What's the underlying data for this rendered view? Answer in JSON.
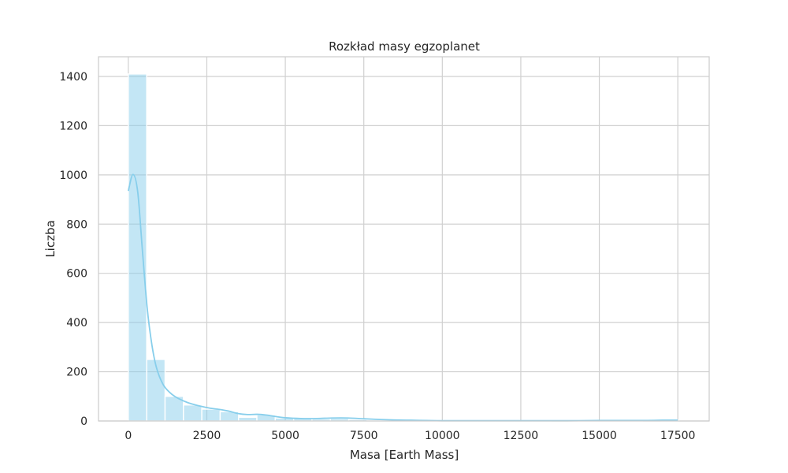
{
  "chart_data": {
    "type": "bar",
    "title": "Rozkład masy egzoplanet",
    "xlabel": "Masa [Earth Mass]",
    "ylabel": "Liczba",
    "xlim": [
      -950,
      18500
    ],
    "ylim": [
      0,
      1480
    ],
    "xticks": [
      0,
      2500,
      5000,
      7500,
      10000,
      12500,
      15000,
      17500
    ],
    "yticks": [
      0,
      200,
      400,
      600,
      800,
      1000,
      1200,
      1400
    ],
    "grid": true,
    "bin_width": 585,
    "bins": [
      {
        "x0": 0,
        "count": 1410
      },
      {
        "x0": 585,
        "count": 250
      },
      {
        "x0": 1170,
        "count": 100
      },
      {
        "x0": 1755,
        "count": 65
      },
      {
        "x0": 2340,
        "count": 48
      },
      {
        "x0": 2925,
        "count": 38
      },
      {
        "x0": 3510,
        "count": 15
      },
      {
        "x0": 4095,
        "count": 25
      },
      {
        "x0": 4680,
        "count": 12
      },
      {
        "x0": 5265,
        "count": 10
      },
      {
        "x0": 5850,
        "count": 8
      },
      {
        "x0": 6435,
        "count": 10
      },
      {
        "x0": 7020,
        "count": 6
      },
      {
        "x0": 7605,
        "count": 4
      },
      {
        "x0": 8190,
        "count": 3
      },
      {
        "x0": 8775,
        "count": 3
      },
      {
        "x0": 9360,
        "count": 2
      },
      {
        "x0": 9945,
        "count": 1
      },
      {
        "x0": 10530,
        "count": 1
      },
      {
        "x0": 11115,
        "count": 1
      },
      {
        "x0": 11700,
        "count": 1
      },
      {
        "x0": 12285,
        "count": 1
      },
      {
        "x0": 12870,
        "count": 1
      },
      {
        "x0": 13455,
        "count": 0
      },
      {
        "x0": 14040,
        "count": 1
      },
      {
        "x0": 14625,
        "count": 1
      },
      {
        "x0": 15210,
        "count": 2
      },
      {
        "x0": 15795,
        "count": 1
      },
      {
        "x0": 16380,
        "count": 0
      },
      {
        "x0": 16965,
        "count": 3
      }
    ],
    "kde": {
      "x": [
        0,
        150,
        300,
        450,
        600,
        750,
        900,
        1100,
        1300,
        1500,
        1750,
        2000,
        2300,
        2600,
        2900,
        3200,
        3500,
        3800,
        4100,
        4400,
        4700,
        5000,
        5500,
        6000,
        6500,
        7000,
        7500,
        8000,
        8500,
        9000,
        9500,
        10000,
        11000,
        12000,
        13000,
        14000,
        15000,
        15500,
        16000,
        16500,
        17000,
        17500
      ],
      "y": [
        935,
        1002,
        930,
        690,
        460,
        310,
        215,
        150,
        118,
        98,
        82,
        70,
        60,
        52,
        47,
        40,
        30,
        26,
        27,
        24,
        18,
        13,
        10,
        10,
        12,
        12,
        9,
        6,
        4,
        3,
        2,
        1,
        1,
        1,
        1,
        1,
        2,
        2,
        2,
        2,
        3,
        3
      ]
    },
    "bar_color": "#87ceeb",
    "bar_opacity": 0.5,
    "kde_color": "#87ceeb"
  }
}
